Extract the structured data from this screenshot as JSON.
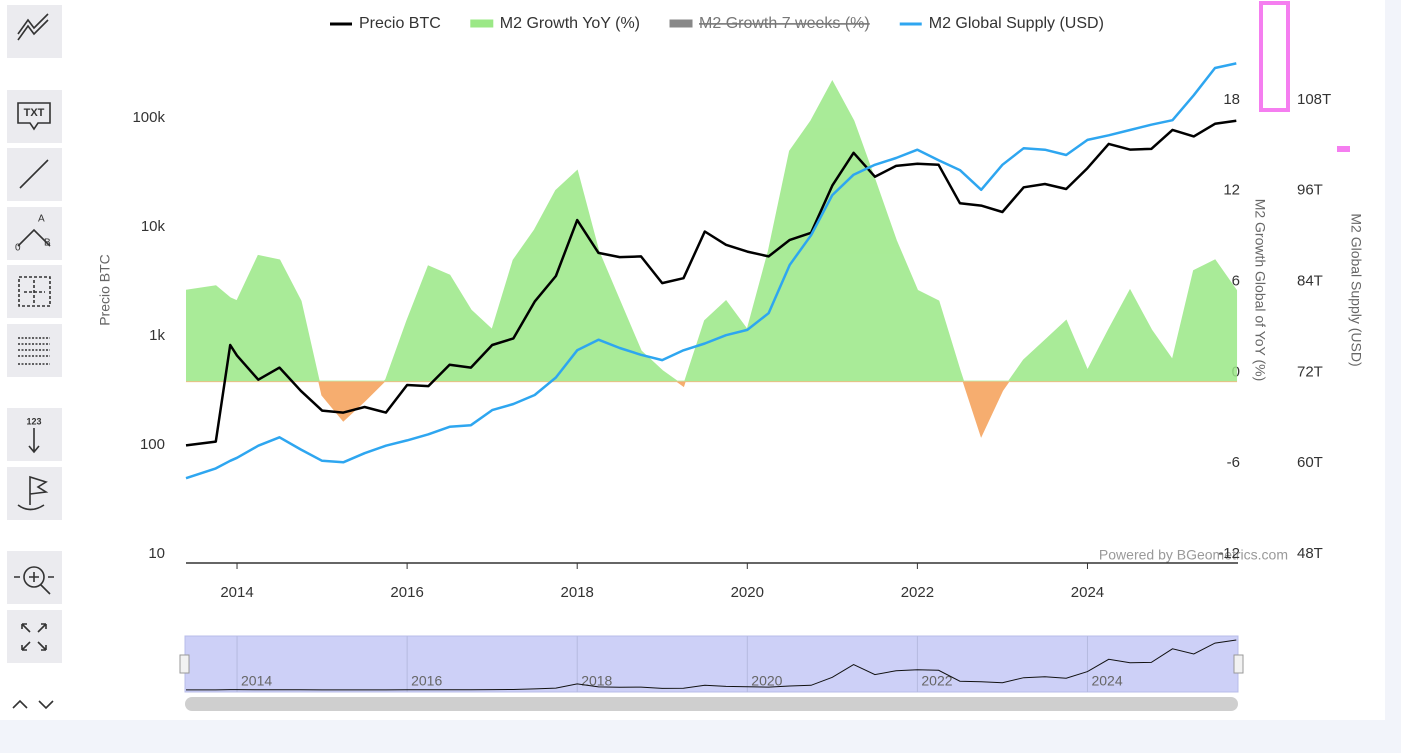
{
  "toolbar": {
    "labels": [
      "TXT",
      "A",
      "0",
      "B",
      "123"
    ]
  },
  "chart_data": {
    "type": "line",
    "x": [
      2013.4,
      2013.75,
      2013.92,
      2014,
      2014.25,
      2014.5,
      2014.75,
      2015,
      2015.25,
      2015.5,
      2015.75,
      2016,
      2016.25,
      2016.5,
      2016.75,
      2017,
      2017.25,
      2017.5,
      2017.75,
      2018,
      2018.25,
      2018.5,
      2018.75,
      2019,
      2019.25,
      2019.5,
      2019.75,
      2020,
      2020.25,
      2020.5,
      2020.75,
      2021,
      2021.25,
      2021.5,
      2021.75,
      2022,
      2022.25,
      2022.5,
      2022.75,
      2023,
      2023.25,
      2023.5,
      2023.75,
      2024,
      2024.25,
      2024.5,
      2024.75,
      2025,
      2025.25,
      2025.5,
      2025.75
    ],
    "xlim": [
      2013.4,
      2025.77
    ],
    "xticks": [
      2014,
      2016,
      2018,
      2020,
      2022,
      2024
    ],
    "ylim": [
      10,
      1000000
    ],
    "log_scale": true,
    "yticks": [
      10,
      100,
      {
        "value": 1000,
        "label": "1k"
      },
      {
        "value": 10000,
        "label": "10k"
      },
      {
        "value": 100000,
        "label": "100k"
      }
    ],
    "y2lim": [
      -12,
      24
    ],
    "y2ticks": [
      -12,
      -6,
      0,
      6,
      12,
      18
    ],
    "y3lim": [
      48000000000000.0,
      120000000000000.0
    ],
    "y3ticks": [
      {
        "value": 48000000000000.0,
        "label": "48T"
      },
      {
        "value": 60000000000000.0,
        "label": "60T"
      },
      {
        "value": 72000000000000.0,
        "label": "72T"
      },
      {
        "value": 84000000000000.0,
        "label": "84T"
      },
      {
        "value": 96000000000000.0,
        "label": "96T"
      },
      {
        "value": 108000000000000.0,
        "label": "108T"
      }
    ],
    "ylabel": "Precio BTC",
    "y2label": "M2 Growth Global of YoY (%)",
    "y3label": "M2 Global Supply (USD)",
    "credit": "Powered by BGeometrics.com",
    "grid": false,
    "legend": "top",
    "series": [
      {
        "name": "Precio BTC",
        "color": "#000000",
        "axis": "y",
        "values": [
          120,
          130,
          1000,
          800,
          480,
          620,
          380,
          250,
          240,
          270,
          240,
          430,
          420,
          660,
          620,
          1000,
          1150,
          2500,
          4300,
          14000,
          7000,
          6400,
          6500,
          3700,
          4100,
          11000,
          8300,
          7200,
          6500,
          9200,
          10700,
          29000,
          58000,
          35000,
          44000,
          46000,
          45000,
          20000,
          19000,
          16600,
          28000,
          30000,
          27000,
          42000,
          70000,
          62000,
          63000,
          94000,
          82000,
          107000,
          114000
        ]
      },
      {
        "name": "M2 Growth YoY (%)",
        "color": "#9be886",
        "negative_color": "#f5a560",
        "axis": "y2",
        "area": true,
        "values": [
          6,
          6.3,
          5.5,
          5.3,
          8.3,
          8,
          5.3,
          -0.9,
          -2.6,
          -1.3,
          0.1,
          4,
          7.6,
          7,
          4.7,
          3.4,
          8,
          10,
          12.6,
          13.9,
          8.6,
          5.3,
          2,
          0.7,
          -0.3,
          4,
          5.3,
          3.4,
          8.6,
          15.2,
          17.2,
          19.8,
          17.2,
          13.3,
          9.3,
          6,
          5.3,
          0.7,
          -3.6,
          -0.6,
          1.4,
          2.7,
          4,
          0.7,
          3.4,
          6,
          3.4,
          1.4,
          7.3,
          8,
          6
        ]
      },
      {
        "name": "M2 Growth 7 weeks (%)",
        "color": "#777777",
        "axis": "y2",
        "visible": false
      },
      {
        "name": "M2 Global Supply (USD)",
        "color": "#2ea6f0",
        "axis": "y3",
        "values": [
          59200000000000.0,
          60500000000000.0,
          61500000000000.0,
          61900000000000.0,
          63500000000000.0,
          64600000000000.0,
          63000000000000.0,
          61500000000000.0,
          61300000000000.0,
          62500000000000.0,
          63500000000000.0,
          64200000000000.0,
          65000000000000.0,
          66000000000000.0,
          66200000000000.0,
          68200000000000.0,
          69000000000000.0,
          70200000000000.0,
          72500000000000.0,
          76100000000000.0,
          77500000000000.0,
          76400000000000.0,
          75500000000000.0,
          74800000000000.0,
          76100000000000.0,
          77000000000000.0,
          78100000000000.0,
          78800000000000.0,
          81000000000000.0,
          87400000000000.0,
          91300000000000.0,
          96600000000000.0,
          99300000000000.0,
          100600000000000.0,
          101500000000000.0,
          102600000000000.0,
          101200000000000.0,
          99900000000000.0,
          97300000000000.0,
          100600000000000.0,
          102800000000000.0,
          102600000000000.0,
          101900000000000.0,
          103900000000000.0,
          104500000000000.0,
          105200000000000.0,
          105900000000000.0,
          106500000000000.0,
          109800000000000.0,
          113400000000000.0,
          114000000000000.0
        ]
      }
    ]
  }
}
